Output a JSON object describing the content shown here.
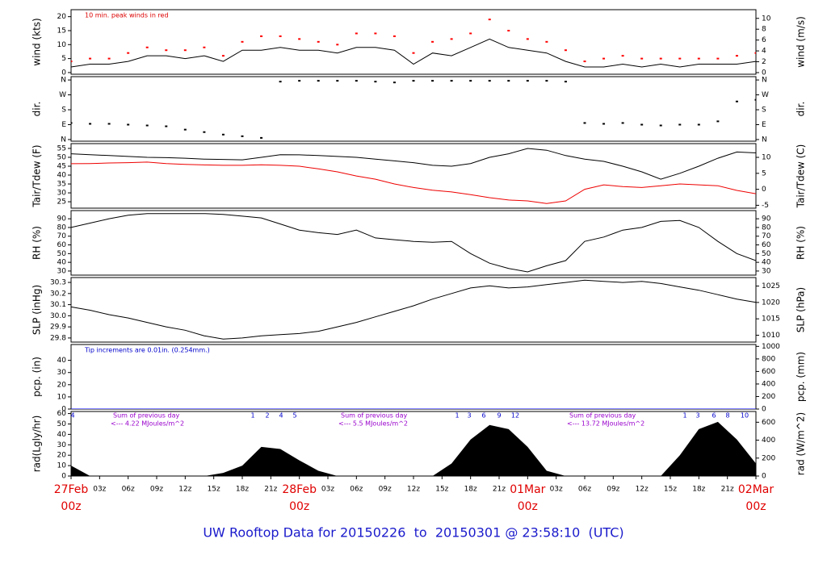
{
  "title": "UW Rooftop Data for 20150226  to  20150301 @ 23:58:10  (UTC)",
  "title_color": "#1a1acc",
  "time": {
    "x": [
      0,
      2,
      4,
      6,
      8,
      10,
      12,
      14,
      16,
      18,
      20,
      22,
      24,
      26,
      28,
      30,
      32,
      34,
      36,
      38,
      40,
      42,
      44,
      46,
      48,
      50,
      52,
      54,
      56,
      58,
      60,
      62,
      64,
      66,
      68,
      70,
      72
    ],
    "xlim": [
      0,
      72
    ],
    "xticks": [
      {
        "value": 0,
        "label": "00z"
      },
      {
        "value": 3,
        "label": "03z"
      },
      {
        "value": 6,
        "label": "06z"
      },
      {
        "value": 9,
        "label": "09z"
      },
      {
        "value": 12,
        "label": "12z"
      },
      {
        "value": 15,
        "label": "15z"
      },
      {
        "value": 18,
        "label": "18z"
      },
      {
        "value": 21,
        "label": "21z"
      },
      {
        "value": 24,
        "label": "00z"
      },
      {
        "value": 27,
        "label": "03z"
      },
      {
        "value": 30,
        "label": "06z"
      },
      {
        "value": 33,
        "label": "09z"
      },
      {
        "value": 36,
        "label": "12z"
      },
      {
        "value": 39,
        "label": "15z"
      },
      {
        "value": 42,
        "label": "18z"
      },
      {
        "value": 45,
        "label": "21z"
      },
      {
        "value": 48,
        "label": "00z"
      },
      {
        "value": 51,
        "label": "03z"
      },
      {
        "value": 54,
        "label": "06z"
      },
      {
        "value": 57,
        "label": "09z"
      },
      {
        "value": 60,
        "label": "12z"
      },
      {
        "value": 63,
        "label": "15z"
      },
      {
        "value": 66,
        "label": "18z"
      },
      {
        "value": 69,
        "label": "21z"
      },
      {
        "value": 72,
        "label": "00z"
      }
    ],
    "xdates": [
      {
        "value": 0,
        "label": "27Feb"
      },
      {
        "value": 24,
        "label": "28Feb"
      },
      {
        "value": 48,
        "label": "01Mar"
      },
      {
        "value": 72,
        "label": "02Mar"
      }
    ],
    "date_color": "#e00000"
  },
  "chart_data": [
    {
      "type": "line",
      "ylabel": "wind (kts)",
      "y2label": "wind (m/s)",
      "ylim": [
        -0.6,
        22.5
      ],
      "yticks": [
        0,
        5,
        10,
        15,
        20
      ],
      "y2lim": [
        -0.3,
        11.6
      ],
      "y2ticks": [
        0,
        2,
        4,
        6,
        8,
        10
      ],
      "annotations": [
        {
          "text": "10 min. peak winds in red",
          "color": "#dd0000"
        }
      ],
      "series": [
        {
          "name": "wind",
          "color": "#000000",
          "mark": "line",
          "values": [
            2,
            3,
            3,
            4,
            6,
            6,
            5,
            6,
            4,
            8,
            8,
            9,
            8,
            8,
            7,
            9,
            9,
            8,
            3,
            7,
            6,
            9,
            12,
            9,
            8,
            7,
            4,
            2,
            2,
            3,
            2,
            3,
            2,
            3,
            3,
            3,
            4
          ]
        },
        {
          "name": "peak",
          "color": "#ff0000",
          "mark": "dots",
          "values": [
            4,
            5,
            5,
            7,
            9,
            8,
            8,
            9,
            6,
            11,
            13,
            13,
            12,
            11,
            10,
            14,
            14,
            13,
            7,
            11,
            12,
            14,
            19,
            15,
            12,
            11,
            8,
            4,
            5,
            6,
            5,
            5,
            5,
            5,
            5,
            6,
            7
          ]
        }
      ]
    },
    {
      "type": "scatter",
      "ylabel": "dir.",
      "y2label": "dir.",
      "ylim": [
        -10,
        380
      ],
      "yticks": [
        {
          "value": 0,
          "label": "N"
        },
        {
          "value": 90,
          "label": "E"
        },
        {
          "value": 180,
          "label": "S"
        },
        {
          "value": 270,
          "label": "W"
        },
        {
          "value": 360,
          "label": "N"
        }
      ],
      "y2lim": [
        -10,
        380
      ],
      "y2ticks": [
        {
          "value": 0,
          "label": "N"
        },
        {
          "value": 90,
          "label": "E"
        },
        {
          "value": 180,
          "label": "S"
        },
        {
          "value": 270,
          "label": "W"
        },
        {
          "value": 360,
          "label": "N"
        }
      ],
      "series": [
        {
          "name": "dir",
          "color": "#000000",
          "mark": "dots",
          "values": [
            100,
            95,
            95,
            90,
            85,
            80,
            60,
            45,
            30,
            20,
            10,
            350,
            355,
            355,
            355,
            355,
            350,
            345,
            355,
            355,
            355,
            355,
            355,
            355,
            355,
            355,
            350,
            100,
            95,
            100,
            90,
            85,
            90,
            90,
            110,
            230,
            240
          ]
        }
      ]
    },
    {
      "type": "line",
      "ylabel": "Tair/Tdew (F)",
      "y2label": "Tair/Tdew (C)",
      "ylim": [
        21.4,
        57.7
      ],
      "yticks": [
        25,
        30,
        35,
        40,
        45,
        50,
        55
      ],
      "y2lim": [
        -5.9,
        14.3
      ],
      "y2ticks": [
        -5,
        0,
        5,
        10
      ],
      "series": [
        {
          "name": "Tair",
          "color": "#000000",
          "mark": "line",
          "values": [
            52,
            51.5,
            51,
            50.5,
            50,
            49.8,
            49.5,
            49,
            48.8,
            48.6,
            50,
            51.5,
            51.4,
            51,
            50.5,
            50,
            49,
            48,
            47,
            45.5,
            45,
            46.5,
            50,
            52,
            55,
            54,
            51,
            49,
            47.7,
            45,
            41.8,
            37.7,
            41,
            45,
            49.5,
            53,
            52.5
          ]
        },
        {
          "name": "Tdew",
          "color": "#ee0000",
          "mark": "line",
          "values": [
            46.4,
            46.5,
            46.8,
            47,
            47.3,
            46.5,
            46,
            45.7,
            45.5,
            45.5,
            45.8,
            45.5,
            45,
            43.5,
            41.8,
            39.5,
            37.7,
            35,
            33,
            31.5,
            30.5,
            29,
            27.3,
            26,
            25.5,
            24,
            25.5,
            32,
            34.5,
            33.5,
            33,
            34,
            35,
            34.5,
            34,
            31.4,
            29.5
          ]
        }
      ]
    },
    {
      "type": "line",
      "ylabel": "RH (%)",
      "y2label": "RH (%)",
      "ylim": [
        25.3,
        99.4
      ],
      "yticks": [
        30,
        40,
        50,
        60,
        70,
        80,
        90
      ],
      "y2lim": [
        25.3,
        99.4
      ],
      "y2ticks": [
        30,
        40,
        50,
        60,
        70,
        80,
        90
      ],
      "series": [
        {
          "name": "RH",
          "color": "#000000",
          "mark": "line",
          "values": [
            80,
            85,
            90,
            94,
            96,
            96,
            96,
            96,
            95,
            93,
            91,
            84,
            77,
            74,
            72,
            77,
            68,
            66,
            64,
            63,
            64,
            50,
            39,
            33,
            29,
            36,
            42,
            64,
            69,
            77,
            80,
            87,
            88,
            80,
            64,
            50,
            42
          ]
        }
      ]
    },
    {
      "type": "line",
      "ylabel": "SLP (inHg)",
      "y2label": "SLP (hPa)",
      "ylim": [
        29.763,
        30.344
      ],
      "yticks": [
        29.8,
        29.9,
        {
          "value": 30,
          "label": "30.0"
        },
        30.1,
        30.2,
        30.3
      ],
      "y2lim": [
        1007.9,
        1027.6
      ],
      "y2ticks": [
        1010,
        1015,
        1020,
        1025
      ],
      "series": [
        {
          "name": "SLP",
          "color": "#000000",
          "mark": "line",
          "values": [
            30.08,
            30.05,
            30.01,
            29.98,
            29.94,
            29.9,
            29.87,
            29.82,
            29.79,
            29.8,
            29.82,
            29.83,
            29.84,
            29.86,
            29.9,
            29.94,
            29.99,
            30.04,
            30.09,
            30.15,
            30.2,
            30.25,
            30.27,
            30.25,
            30.26,
            30.28,
            30.3,
            30.32,
            30.31,
            30.3,
            30.31,
            30.29,
            30.26,
            30.23,
            30.19,
            30.15,
            30.12
          ]
        }
      ]
    },
    {
      "type": "line",
      "ylabel": "pcp. (in)",
      "y2label": "pcp. (mm)",
      "ylim": [
        0,
        53
      ],
      "yticks": [
        0,
        10,
        20,
        30,
        40
      ],
      "y2lim": [
        0,
        1030
      ],
      "y2ticks": [
        0,
        200,
        400,
        600,
        800,
        1000
      ],
      "annotations": [
        {
          "text": "Tip increments are 0.01in. (0.254mm.)",
          "color": "#0000cc"
        }
      ],
      "series": [
        {
          "name": "pcp",
          "color": "#0000ff",
          "mark": "line",
          "values": [
            0,
            0,
            0,
            0,
            0,
            0,
            0,
            0,
            0.01,
            0.01,
            0.01,
            0.01,
            0.01,
            0.01,
            0.01,
            0.01,
            0.01,
            0.01,
            0.01,
            0.01,
            0.01,
            0.01,
            0.01,
            0.01,
            0.01,
            0.01,
            0.01,
            0.01,
            0.01,
            0.01,
            0.01,
            0.01,
            0.01,
            0.01,
            0.01,
            0.01,
            0.01
          ]
        }
      ]
    },
    {
      "type": "area",
      "ylabel": "rad(Lgly/hr)",
      "y2label": "rad (W/m^2)",
      "ylim": [
        0,
        62
      ],
      "yticks": [
        0,
        10,
        20,
        30,
        40,
        50,
        60
      ],
      "y2lim": [
        0,
        720
      ],
      "y2ticks": [
        0,
        200,
        400,
        600
      ],
      "note_color": "#9900cc",
      "mark_color": "#0000cc",
      "day_notes": [
        {
          "title": "Sum of previous day",
          "total": "<--- 4.22 MJoules/m^2"
        },
        {
          "title": "Sum of previous day",
          "total": "<--- 5.5 MJoules/m^2"
        },
        {
          "title": "Sum of previous day",
          "total": "<--- 13.72 MJoules/m^2"
        }
      ],
      "hour_marks": [
        [
          "4"
        ],
        [
          "1",
          "2",
          "4",
          "5"
        ],
        [
          "1",
          "3",
          "6",
          "9",
          "12"
        ],
        [
          "1",
          "3",
          "6",
          "8",
          "10"
        ]
      ],
      "series": [
        {
          "name": "rad",
          "color": "#000000",
          "mark": "area",
          "values": [
            10,
            0,
            0,
            0,
            0,
            0,
            0,
            0,
            3,
            10,
            28,
            26,
            15,
            5,
            0,
            0,
            0,
            0,
            0,
            0,
            12,
            35,
            49,
            45,
            28,
            5,
            0,
            0,
            0,
            0,
            0,
            0,
            20,
            45,
            52,
            35,
            12
          ]
        }
      ]
    }
  ]
}
